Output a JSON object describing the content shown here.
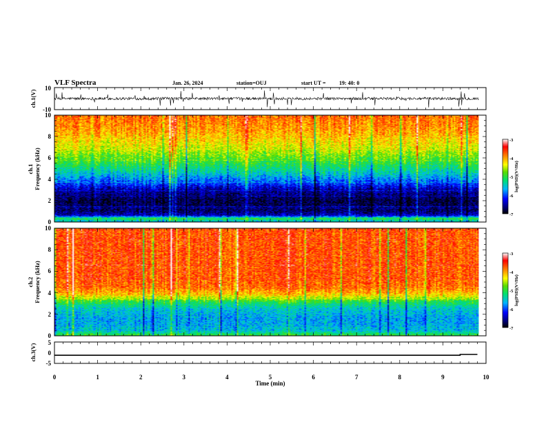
{
  "header": {
    "title": "VLF Spectra",
    "date": "Jan. 26, 2024",
    "station": "station=OUJ",
    "start_label": "start  UT  =",
    "start_time": "19: 40: 0"
  },
  "chart_data": [
    {
      "type": "line",
      "panel": "ch1-waveform",
      "ylabel": "ch.1(V)",
      "ylim": [
        -10,
        10
      ],
      "y_ticks": [
        "10",
        "-10"
      ],
      "xlim": [
        0,
        10
      ],
      "baseline": 0,
      "noise_amplitude": 2.5
    },
    {
      "type": "heatmap",
      "panel": "ch1-spectrogram",
      "ylabel": "ch.1",
      "ylabel2": "Frequency  (kHz)",
      "ylim": [
        0,
        10
      ],
      "y_ticks": [
        "0",
        "2",
        "4",
        "6",
        "8",
        "10"
      ],
      "xlim": [
        0,
        10
      ],
      "colorbar": {
        "min": -7,
        "max": -3,
        "ticks": [
          "-3",
          "-4",
          "-5",
          "-6",
          "-7"
        ],
        "label": "log(PSD)(V²/Hz)"
      },
      "profile_freq_khz": [
        0,
        0.3,
        0.6,
        1.0,
        2.0,
        3.0,
        3.5,
        4.5,
        5.5,
        7.0,
        8.5,
        10.0
      ],
      "profile_log_psd": [
        -5.6,
        -5.0,
        -6.4,
        -6.7,
        -6.8,
        -6.5,
        -6.1,
        -5.5,
        -5.0,
        -4.4,
        -4.0,
        -3.8
      ]
    },
    {
      "type": "heatmap",
      "panel": "ch2-spectrogram",
      "ylabel": "ch.2",
      "ylabel2": "Frequency  (kHz)",
      "ylim": [
        0,
        10
      ],
      "y_ticks": [
        "0",
        "2",
        "4",
        "6",
        "8",
        "10"
      ],
      "xlim": [
        0,
        10
      ],
      "colorbar": {
        "min": -7,
        "max": -3,
        "ticks": [
          "-3",
          "-4",
          "-5",
          "-6",
          "-7"
        ],
        "label": "log(PSD)(V²/Hz)"
      },
      "profile_freq_khz": [
        0,
        0.5,
        1.5,
        2.5,
        3.2,
        3.8,
        4.5,
        6.0,
        8.0,
        10.0
      ],
      "profile_log_psd": [
        -5.0,
        -5.6,
        -5.7,
        -5.5,
        -5.0,
        -4.2,
        -3.8,
        -3.7,
        -3.7,
        -3.7
      ]
    },
    {
      "type": "line",
      "panel": "ch3-waveform",
      "ylabel": "ch.3(V)",
      "ylim": [
        -5,
        5
      ],
      "y_ticks": [
        "5",
        "0",
        "-5"
      ],
      "xlim": [
        0,
        10
      ],
      "x": [
        0,
        9.4,
        9.4,
        9.8
      ],
      "y": [
        -1.2,
        -1.2,
        -0.8,
        -0.8
      ]
    }
  ],
  "x_axis": {
    "label": "Time  (min)",
    "ticks": [
      "0",
      "1",
      "2",
      "3",
      "4",
      "5",
      "6",
      "7",
      "8",
      "9",
      "10"
    ],
    "range": [
      0,
      10
    ],
    "data_end": 9.83
  },
  "colors": {
    "axis": "#000000",
    "background": "#ffffff"
  }
}
